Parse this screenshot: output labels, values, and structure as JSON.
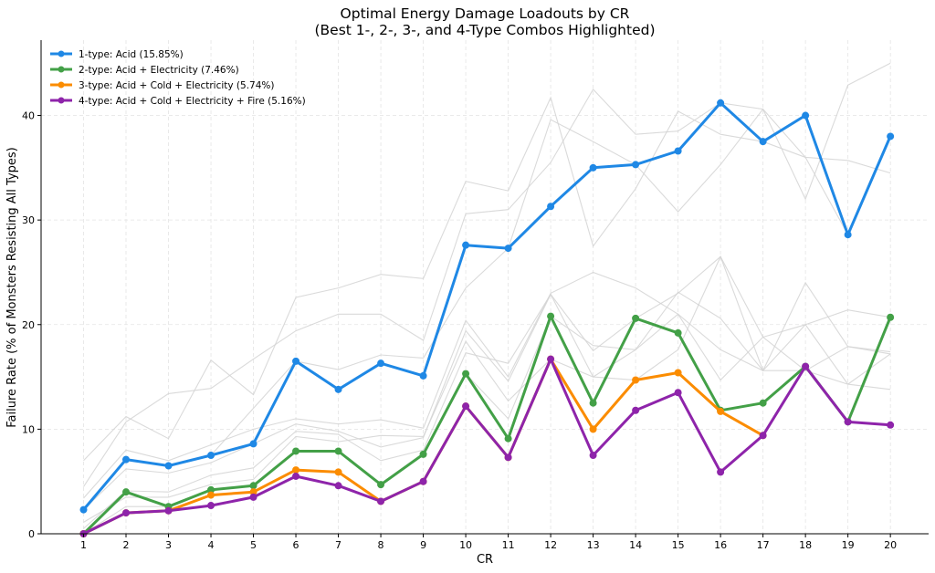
{
  "chart_data": {
    "type": "line",
    "title": "Optimal Energy Damage Loadouts by CR",
    "subtitle": "(Best 1-, 2-, 3-, and 4-Type Combos Highlighted)",
    "xlabel": "CR",
    "ylabel": "Failure Rate (% of Monsters Resisting All Types)",
    "x": [
      1,
      2,
      3,
      4,
      5,
      6,
      7,
      8,
      9,
      10,
      11,
      12,
      13,
      14,
      15,
      16,
      17,
      18,
      19,
      20
    ],
    "xlim": [
      0.0,
      20.9
    ],
    "ylim": [
      0,
      47.2
    ],
    "yticks": [
      0,
      10,
      20,
      30,
      40
    ],
    "grid": true,
    "legend_position": "top-left",
    "series": [
      {
        "name": "1-type: Acid (15.85%)",
        "color": "#1f88e5",
        "values": [
          2.3,
          7.1,
          6.5,
          7.5,
          8.6,
          16.5,
          13.8,
          16.3,
          15.1,
          27.6,
          27.3,
          31.3,
          35.0,
          35.3,
          36.6,
          41.2,
          37.5,
          40.0,
          28.6,
          38.0
        ]
      },
      {
        "name": "2-type: Acid + Electricity (7.46%)",
        "color": "#43a047",
        "values": [
          0,
          4.0,
          2.6,
          4.2,
          4.6,
          7.9,
          7.9,
          4.7,
          7.6,
          15.3,
          9.1,
          20.8,
          12.5,
          20.6,
          19.2,
          11.8,
          12.5,
          16.0,
          10.7,
          20.7
        ]
      },
      {
        "name": "3-type: Acid + Cold + Electricity (5.74%)",
        "color": "#fb8c00",
        "values": [
          0,
          2.0,
          2.2,
          3.7,
          4.0,
          6.1,
          5.9,
          3.1,
          5.0,
          12.2,
          7.3,
          16.7,
          10.0,
          14.7,
          15.4,
          11.7,
          9.4,
          null,
          null,
          null
        ]
      },
      {
        "name": "4-type: Acid + Cold + Electricity + Fire (5.16%)",
        "color": "#8e24aa",
        "values": [
          0,
          2.0,
          2.2,
          2.7,
          3.5,
          5.5,
          4.6,
          3.1,
          5.0,
          12.2,
          7.3,
          16.7,
          7.5,
          11.8,
          13.5,
          5.9,
          9.4,
          16.0,
          10.7,
          10.4
        ]
      }
    ],
    "background_series": [
      [
        7.0,
        11.2,
        9.1,
        16.6,
        13.3,
        22.6,
        23.5,
        24.8,
        24.4,
        33.7,
        32.8,
        41.7,
        27.5,
        33.0,
        40.4,
        38.2,
        37.5,
        36.0,
        35.7,
        34.5
      ],
      [
        4.5,
        10.7,
        13.4,
        13.9,
        16.7,
        19.4,
        21.0,
        21.0,
        18.5,
        30.6,
        31.0,
        35.5,
        42.5,
        38.2,
        38.5,
        41.2,
        40.6,
        32.0,
        42.9,
        45.0
      ],
      [
        2.3,
        7.1,
        6.5,
        7.5,
        12.0,
        16.5,
        15.7,
        17.1,
        16.8,
        23.5,
        27.3,
        39.6,
        37.5,
        35.3,
        30.8,
        35.3,
        40.6,
        36.0,
        28.6,
        38.0
      ],
      [
        3.4,
        8.0,
        7.0,
        8.5,
        10.0,
        11.0,
        10.5,
        10.9,
        10.1,
        20.4,
        15.0,
        23.0,
        25.0,
        23.5,
        21.0,
        17.6,
        15.6,
        24.0,
        17.9,
        17.4
      ],
      [
        2.3,
        6.2,
        5.8,
        6.8,
        8.6,
        10.5,
        9.8,
        8.3,
        9.2,
        19.4,
        14.6,
        22.9,
        17.5,
        20.6,
        23.0,
        26.5,
        18.8,
        20.0,
        21.4,
        20.7
      ],
      [
        1.1,
        3.5,
        3.5,
        4.7,
        5.2,
        9.3,
        8.8,
        9.4,
        9.3,
        18.4,
        12.7,
        16.7,
        15.0,
        17.6,
        23.1,
        20.6,
        15.6,
        20.0,
        14.3,
        13.8
      ],
      [
        0.5,
        4.1,
        4.0,
        5.6,
        6.3,
        9.8,
        9.5,
        7.0,
        8.0,
        17.3,
        16.3,
        22.9,
        15.0,
        14.7,
        17.6,
        26.5,
        15.6,
        15.6,
        17.9,
        17.2
      ],
      [
        0,
        2.6,
        2.6,
        4.2,
        4.6,
        7.9,
        7.9,
        4.7,
        7.6,
        15.3,
        11.0,
        20.8,
        18.0,
        17.6,
        21.0,
        14.7,
        18.8,
        15.6,
        14.3,
        17.2
      ]
    ]
  }
}
